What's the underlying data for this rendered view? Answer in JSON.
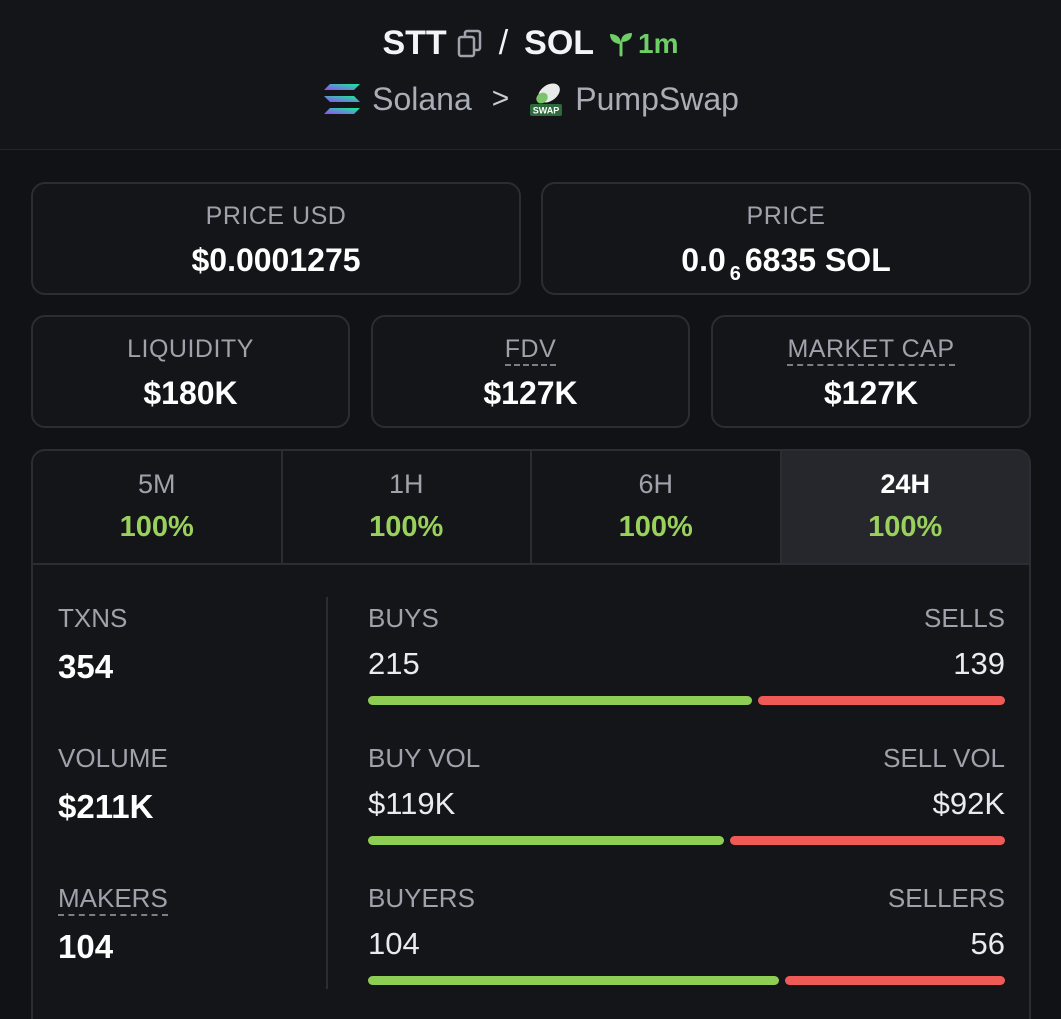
{
  "header": {
    "base_token": "STT",
    "separator": "/",
    "quote_token": "SOL",
    "age": "1m",
    "chain": "Solana",
    "chevron": ">",
    "dex": "PumpSwap",
    "dex_badge_text": "SWAP"
  },
  "metrics": {
    "price_usd": {
      "label": "PRICE USD",
      "value": "$0.0001275"
    },
    "price_native": {
      "label": "PRICE",
      "prefix": "0.0",
      "zeros_count": "6",
      "suffix": "6835 SOL"
    },
    "liquidity": {
      "label": "LIQUIDITY",
      "value": "$180K"
    },
    "fdv": {
      "label": "FDV",
      "value": "$127K"
    },
    "market_cap": {
      "label": "MARKET CAP",
      "value": "$127K"
    }
  },
  "timeframes": [
    {
      "label": "5M",
      "change": "100%",
      "active": false
    },
    {
      "label": "1H",
      "change": "100%",
      "active": false
    },
    {
      "label": "6H",
      "change": "100%",
      "active": false
    },
    {
      "label": "24H",
      "change": "100%",
      "active": true
    }
  ],
  "stats": {
    "txns": {
      "label": "TXNS",
      "value": "354"
    },
    "volume": {
      "label": "VOLUME",
      "value": "$211K"
    },
    "makers": {
      "label": "MAKERS",
      "value": "104"
    }
  },
  "ratios": {
    "txns": {
      "left_label": "BUYS",
      "left_value": "215",
      "right_label": "SELLS",
      "right_value": "139",
      "buy_fraction": 0.607
    },
    "volume": {
      "left_label": "BUY VOL",
      "left_value": "$119K",
      "right_label": "SELL VOL",
      "right_value": "$92K",
      "buy_fraction": 0.564
    },
    "makers": {
      "left_label": "BUYERS",
      "left_value": "104",
      "right_label": "SELLERS",
      "right_value": "56",
      "buy_fraction": 0.65
    }
  },
  "colors": {
    "positive": "#9ad15c",
    "buy_bar": "#8fce54",
    "sell_bar": "#ef5a57",
    "age_green": "#6fcf67",
    "background": "#111215"
  },
  "icons": {
    "copy": "copy-icon",
    "age": "seedling-icon",
    "chain": "solana-logo-icon",
    "dex": "pumpswap-logo-icon"
  }
}
